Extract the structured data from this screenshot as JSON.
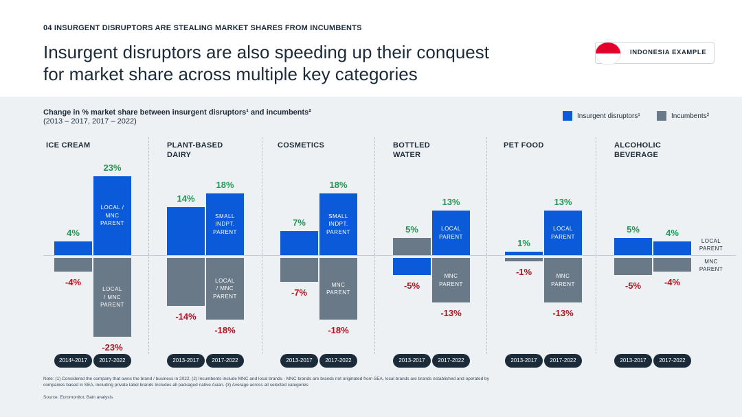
{
  "header": {
    "eyebrow": "04 INSURGENT DISRUPTORS ARE STEALING MARKET SHARES FROM INCUMBENTS",
    "title_line1": "Insurgent disruptors are also speeding up their conquest",
    "title_line2": "for market share across multiple key categories",
    "country_badge": "INDONESIA EXAMPLE"
  },
  "chart_data": {
    "type": "bar",
    "title": "Change in % market share between insurgent disruptors¹ and incumbents²",
    "subtitle": "(2013 – 2017, 2017 – 2022)",
    "legend": [
      {
        "name": "Insurgent disruptors¹",
        "color": "#0a5ad9"
      },
      {
        "name": "Incumbents²",
        "color": "#697987"
      }
    ],
    "unit": "%",
    "groups": [
      {
        "category": "ICE CREAM",
        "periods": [
          "2014³-2017",
          "2017-2022"
        ],
        "insurgent": [
          4,
          23
        ],
        "incumbent": [
          -4,
          -23
        ],
        "insurgent_labels": [
          "4%",
          "23%"
        ],
        "incumbent_labels": [
          "-4%",
          "-23%"
        ],
        "insurgent_tags": [
          "",
          "LOCAL /|MNC|PARENT"
        ],
        "incumbent_tags": [
          "",
          "LOCAL|/ MNC|PARENT"
        ]
      },
      {
        "category": "PLANT-BASED|DAIRY",
        "periods": [
          "2013-2017",
          "2017-2022"
        ],
        "insurgent": [
          14,
          18
        ],
        "incumbent": [
          -14,
          -18
        ],
        "insurgent_labels": [
          "14%",
          "18%"
        ],
        "incumbent_labels": [
          "-14%",
          "-18%"
        ],
        "insurgent_tags": [
          "",
          "SMALL|INDPT.|PARENT"
        ],
        "incumbent_tags": [
          "",
          "LOCAL|/ MNC|PARENT"
        ]
      },
      {
        "category": "COSMETICS",
        "periods": [
          "2013-2017",
          "2017-2022"
        ],
        "insurgent": [
          7,
          18
        ],
        "incumbent": [
          -7,
          -18
        ],
        "insurgent_labels": [
          "7%",
          "18%"
        ],
        "incumbent_labels": [
          "-7%",
          "-18%"
        ],
        "insurgent_tags": [
          "",
          "SMALL|INDPT.|PARENT"
        ],
        "incumbent_tags": [
          "",
          "MNC|PARENT"
        ]
      },
      {
        "category": "BOTTLED|WATER",
        "periods": [
          "2013-2017",
          "2017-2022"
        ],
        "insurgent": [
          -5,
          13
        ],
        "incumbent": [
          5,
          -13
        ],
        "insurgent_labels": [
          "-5%",
          "13%"
        ],
        "incumbent_labels": [
          "5%",
          "-13%"
        ],
        "insurgent_tags": [
          "",
          "LOCAL|PARENT"
        ],
        "incumbent_tags": [
          "",
          "MNC|PARENT"
        ]
      },
      {
        "category": "PET FOOD",
        "periods": [
          "2013-2017",
          "2017-2022"
        ],
        "insurgent": [
          1,
          13
        ],
        "incumbent": [
          -1,
          -13
        ],
        "insurgent_labels": [
          "1%",
          "13%"
        ],
        "incumbent_labels": [
          "-1%",
          "-13%"
        ],
        "insurgent_tags": [
          "",
          "LOCAL|PARENT"
        ],
        "incumbent_tags": [
          "",
          "MNC|PARENT"
        ]
      },
      {
        "category": "ALCOHOLIC|BEVERAGE",
        "periods": [
          "2013-2017",
          "2017-2022"
        ],
        "insurgent": [
          5,
          4
        ],
        "incumbent": [
          -5,
          -4
        ],
        "insurgent_labels": [
          "5%",
          "4%"
        ],
        "incumbent_labels": [
          "-5%",
          "-4%"
        ],
        "insurgent_tags": [
          "",
          ""
        ],
        "incumbent_tags": [
          "",
          ""
        ]
      }
    ],
    "side_labels": {
      "top": "LOCAL|PARENT",
      "bottom": "MNC|PARENT"
    }
  },
  "footer": {
    "note": "Note: (1) Considered the company that owns the brand / business in 2022; (2) Incumbents include MNC and local brands - MNC brands are brands not originated from SEA, local brands are brands established and operated by companies based in SEA, including private label brands Includes all packaged native Asian. (3) Average across all selected categories",
    "source": "Source: Euromonitor, Bain analysis"
  },
  "colors": {
    "insurgent": "#0a5ad9",
    "incumbent": "#697987",
    "positive": "#1e9a52",
    "negative": "#b0151f"
  }
}
